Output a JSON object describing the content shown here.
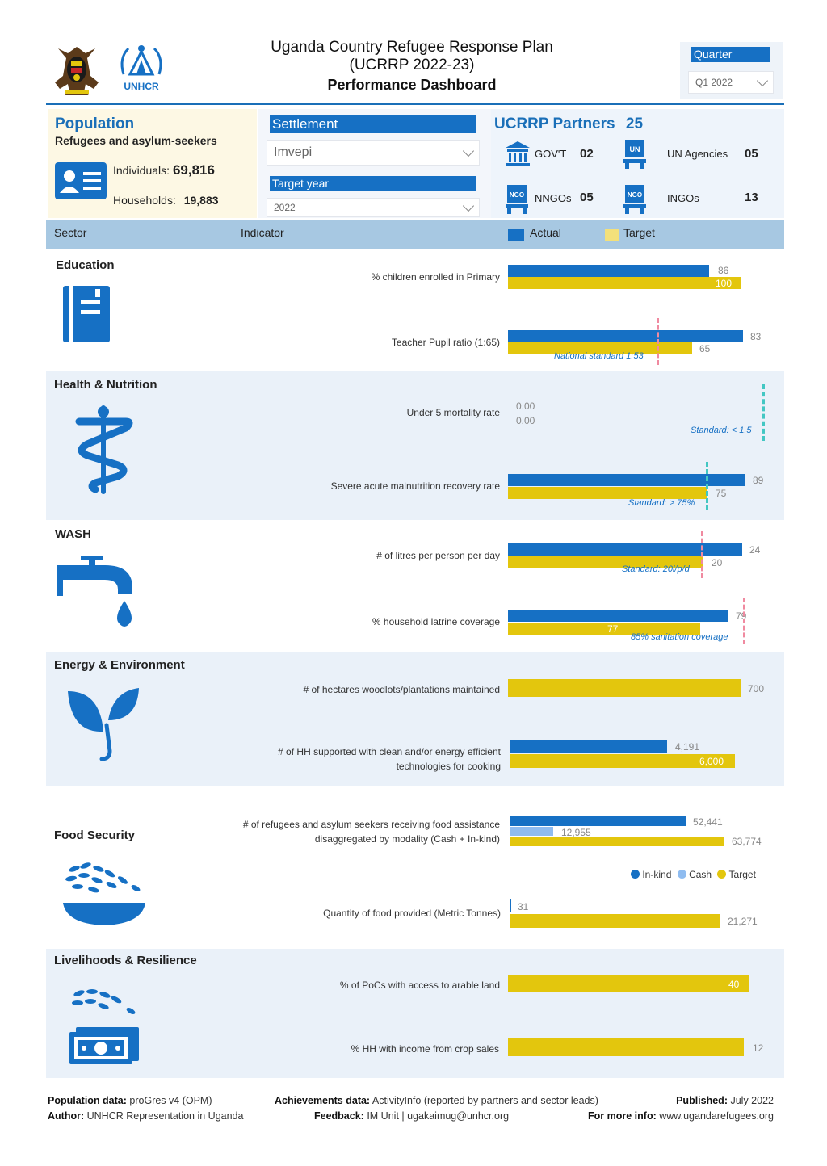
{
  "header": {
    "title_line1": "Uganda Country Refugee Response Plan",
    "title_line2": "(UCRRP 2022-23)",
    "title_line3": "Performance Dashboard",
    "unhcr_logo_text": "UNHCR",
    "quarter_label": "Quarter",
    "quarter_value": "Q1 2022"
  },
  "population": {
    "title": "Population",
    "subtitle": "Refugees and asylum-seekers",
    "individuals_label": "Individuals:",
    "individuals_value": "69,816",
    "households_label": "Households:",
    "households_value": "19,883"
  },
  "filters": {
    "settlement_label": "Settlement",
    "settlement_value": "Imvepi",
    "target_year_label": "Target year",
    "target_year_value": "2022"
  },
  "partners": {
    "title": "UCRRP Partners",
    "total": "25",
    "govt_label": "GOV'T",
    "govt_value": "02",
    "un_label": "UN Agencies",
    "un_value": "05",
    "nngo_label": "NNGOs",
    "nngo_value": "05",
    "ingo_label": "INGOs",
    "ingo_value": "13",
    "un_badge": "UN",
    "ngo_badge": "NGO"
  },
  "columns": {
    "sector": "Sector",
    "indicator": "Indicator",
    "actual": "Actual",
    "target": "Target"
  },
  "colors": {
    "actual": "#1670c4",
    "target": "#e3c60d",
    "cash": "#8fbcf0",
    "accent": "#1a6fb8"
  },
  "sectors": {
    "education": "Education",
    "health": "Health & Nutrition",
    "wash": "WASH",
    "energy": "Energy & Environment",
    "food": "Food Security",
    "livelihoods": "Livelihoods & Resilience"
  },
  "indicators": {
    "edu1": {
      "label": "% children enrolled in Primary",
      "actual": "86",
      "target": "100"
    },
    "edu2": {
      "label": "Teacher Pupil ratio (1:65)",
      "actual": "83",
      "target": "65",
      "standard": "National standard 1:53"
    },
    "hea1": {
      "label": "Under 5 mortality rate",
      "actual": "0.00",
      "target": "0.00",
      "standard": "Standard: < 1.5"
    },
    "hea2": {
      "label": "Severe acute malnutrition recovery rate",
      "actual": "89",
      "target": "75",
      "standard": "Standard: > 75%"
    },
    "wash1": {
      "label": "# of litres per person per day",
      "actual": "24",
      "target": "20",
      "standard": "Standard: 20l/p/d"
    },
    "wash2": {
      "label": "% household latrine coverage",
      "actual": "79",
      "target": "77",
      "standard": "85% sanitation coverage"
    },
    "en1": {
      "label": "# of hectares woodlots/plantations maintained",
      "target": "700"
    },
    "en2": {
      "label_line1": "# of HH supported with clean and/or energy efficient",
      "label_line2": "technologies for cooking",
      "actual": "4,191",
      "target": "6,000"
    },
    "food1": {
      "label_line1": "# of refugees and asylum seekers receiving food assistance",
      "label_line2": "disaggregated by modality (Cash + In-kind)",
      "inkind": "52,441",
      "cash": "12,955",
      "target": "63,774"
    },
    "food2": {
      "label": "Quantity of food provided (Metric Tonnes)",
      "actual": "31",
      "target": "21,271"
    },
    "liv1": {
      "label": "% of PoCs with access to arable land",
      "target": "40"
    },
    "liv2": {
      "label": "% HH with income from crop sales",
      "target": "12"
    }
  },
  "food_legend": {
    "inkind": "In-kind",
    "cash": "Cash",
    "target": "Target"
  },
  "chart_data": [
    {
      "type": "bar",
      "title": "% children enrolled in Primary",
      "series": [
        {
          "name": "Actual",
          "values": [
            86
          ]
        },
        {
          "name": "Target",
          "values": [
            100
          ]
        }
      ]
    },
    {
      "type": "bar",
      "title": "Teacher Pupil ratio (1:65)",
      "series": [
        {
          "name": "Actual",
          "values": [
            83
          ]
        },
        {
          "name": "Target",
          "values": [
            65
          ]
        }
      ],
      "annotations": [
        "National standard 1:53"
      ]
    },
    {
      "type": "bar",
      "title": "Under 5 mortality rate",
      "series": [
        {
          "name": "Actual",
          "values": [
            0.0
          ]
        },
        {
          "name": "Target",
          "values": [
            0.0
          ]
        }
      ],
      "annotations": [
        "Standard: < 1.5"
      ]
    },
    {
      "type": "bar",
      "title": "Severe acute malnutrition recovery rate",
      "series": [
        {
          "name": "Actual",
          "values": [
            89
          ]
        },
        {
          "name": "Target",
          "values": [
            75
          ]
        }
      ],
      "annotations": [
        "Standard: > 75%"
      ]
    },
    {
      "type": "bar",
      "title": "# of litres per person per day",
      "series": [
        {
          "name": "Actual",
          "values": [
            24
          ]
        },
        {
          "name": "Target",
          "values": [
            20
          ]
        }
      ],
      "annotations": [
        "Standard: 20l/p/d"
      ]
    },
    {
      "type": "bar",
      "title": "% household latrine coverage",
      "series": [
        {
          "name": "Actual",
          "values": [
            79
          ]
        },
        {
          "name": "Target",
          "values": [
            77
          ]
        }
      ],
      "annotations": [
        "85% sanitation coverage"
      ]
    },
    {
      "type": "bar",
      "title": "# of hectares woodlots/plantations maintained",
      "series": [
        {
          "name": "Target",
          "values": [
            700
          ]
        }
      ]
    },
    {
      "type": "bar",
      "title": "# of HH supported with clean and/or energy efficient technologies for cooking",
      "series": [
        {
          "name": "Actual",
          "values": [
            4191
          ]
        },
        {
          "name": "Target",
          "values": [
            6000
          ]
        }
      ]
    },
    {
      "type": "bar",
      "title": "# of refugees and asylum seekers receiving food assistance disaggregated by modality (Cash + In-kind)",
      "series": [
        {
          "name": "In-kind",
          "values": [
            52441
          ]
        },
        {
          "name": "Cash",
          "values": [
            12955
          ]
        },
        {
          "name": "Target",
          "values": [
            63774
          ]
        }
      ]
    },
    {
      "type": "bar",
      "title": "Quantity of food provided (Metric Tonnes)",
      "series": [
        {
          "name": "Target",
          "values": [
            21271
          ]
        }
      ],
      "annotations": [
        "31"
      ]
    },
    {
      "type": "bar",
      "title": "% of PoCs with access to arable land",
      "series": [
        {
          "name": "Target",
          "values": [
            40
          ]
        }
      ]
    },
    {
      "type": "bar",
      "title": "% HH with income from crop sales",
      "series": [
        {
          "name": "Target",
          "values": [
            12
          ]
        }
      ]
    }
  ],
  "footer": {
    "pop_label": "Population data:",
    "pop_value": "proGres v4 (OPM)",
    "author_label": "Author:",
    "author_value": "UNHCR Representation in Uganda",
    "ach_label": "Achievements data:",
    "ach_value": "ActivityInfo (reported by partners and sector leads)",
    "feedback_label": "Feedback:",
    "feedback_value": "IM Unit | ugakaimug@unhcr.org",
    "published_label": "Published:",
    "published_value": "July 2022",
    "more_label": "For more info:",
    "more_value": "www.ugandarefugees.org"
  }
}
